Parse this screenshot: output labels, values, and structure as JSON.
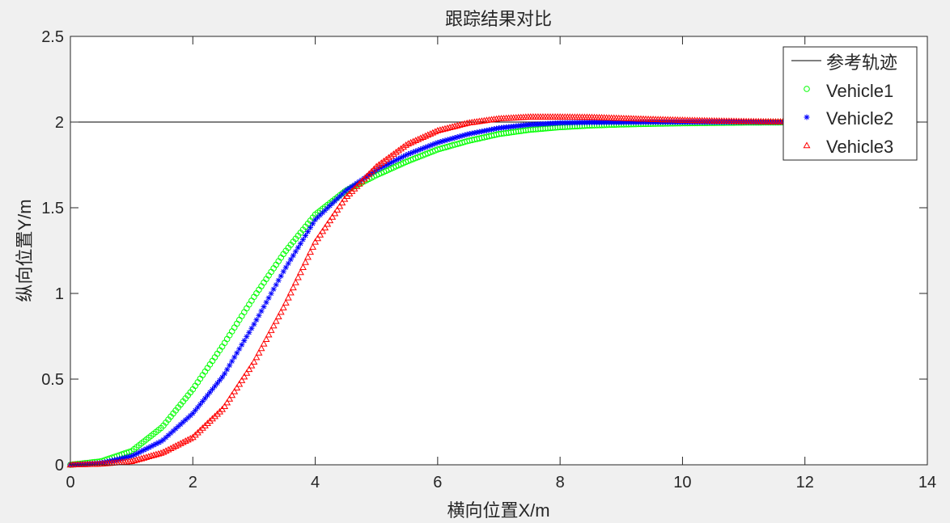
{
  "chart_data": {
    "type": "line",
    "title": "跟踪结果对比",
    "xlabel": "横向位置X/m",
    "ylabel": "纵向位置Y/m",
    "xlim": [
      0,
      14
    ],
    "ylim": [
      0,
      2.5
    ],
    "xticks": [
      0,
      2,
      4,
      6,
      8,
      10,
      12,
      14
    ],
    "yticks": [
      0,
      0.5,
      1,
      1.5,
      2,
      2.5
    ],
    "ytick_labels": [
      "0",
      "0.5",
      "1",
      "1.5",
      "2",
      "2.5"
    ],
    "grid": false,
    "legend_location": "top-right",
    "series": [
      {
        "name": "参考轨迹",
        "style": "line",
        "color": "#000000",
        "x": [
          0,
          14
        ],
        "y": [
          2,
          2
        ]
      },
      {
        "name": "Vehicle1",
        "style": "circle-markers",
        "color": "#00ff00",
        "x": [
          0.0,
          0.5,
          1.0,
          1.5,
          2.0,
          2.5,
          3.0,
          3.5,
          4.0,
          4.5,
          5.0,
          5.5,
          6.0,
          6.5,
          7.0,
          7.5,
          8.0,
          8.5,
          9.0,
          9.5,
          10.0,
          10.5,
          11.0,
          11.5,
          12.0
        ],
        "y": [
          0.0,
          0.02,
          0.08,
          0.22,
          0.44,
          0.7,
          0.98,
          1.24,
          1.46,
          1.6,
          1.69,
          1.77,
          1.84,
          1.89,
          1.93,
          1.955,
          1.97,
          1.98,
          1.986,
          1.99,
          1.993,
          1.995,
          1.997,
          1.998,
          1.999
        ]
      },
      {
        "name": "Vehicle2",
        "style": "star-markers",
        "color": "#0000ff",
        "x": [
          0.0,
          0.5,
          1.0,
          1.5,
          2.0,
          2.5,
          3.0,
          3.5,
          4.0,
          4.5,
          5.0,
          5.5,
          6.0,
          6.5,
          7.0,
          7.5,
          8.0,
          8.5,
          9.0,
          9.5,
          10.0,
          10.5,
          11.0,
          11.5,
          12.0
        ],
        "y": [
          0.0,
          0.01,
          0.05,
          0.14,
          0.3,
          0.52,
          0.82,
          1.14,
          1.43,
          1.6,
          1.72,
          1.81,
          1.88,
          1.93,
          1.965,
          1.985,
          1.995,
          1.998,
          1.999,
          2.0,
          2.0,
          2.0,
          2.0,
          2.0,
          2.0
        ]
      },
      {
        "name": "Vehicle3",
        "style": "triangle-markers",
        "color": "#ff0000",
        "x": [
          0.0,
          0.5,
          1.0,
          1.5,
          2.0,
          2.5,
          3.0,
          3.5,
          4.0,
          4.5,
          5.0,
          5.5,
          6.0,
          6.5,
          7.0,
          7.5,
          8.0,
          8.5,
          9.0,
          9.5,
          10.0,
          10.5,
          11.0,
          11.5,
          12.0
        ],
        "y": [
          0.0,
          0.005,
          0.02,
          0.07,
          0.16,
          0.33,
          0.6,
          0.93,
          1.3,
          1.56,
          1.74,
          1.87,
          1.95,
          1.995,
          2.02,
          2.03,
          2.03,
          2.028,
          2.022,
          2.016,
          2.011,
          2.007,
          2.004,
          2.002,
          2.001
        ]
      }
    ]
  }
}
